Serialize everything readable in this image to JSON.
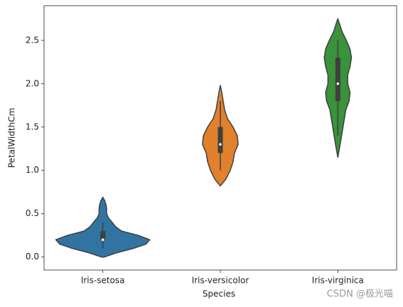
{
  "chart_data": {
    "type": "violin",
    "xlabel": "Species",
    "ylabel": "PetalWidthCm",
    "categories": [
      "Iris-setosa",
      "Iris-versicolor",
      "Iris-virginica"
    ],
    "ylim": [
      -0.15,
      2.9
    ],
    "yticks": [
      {
        "value": 0,
        "label": "0.0"
      },
      0.5,
      {
        "value": 1,
        "label": "1.0"
      },
      1.5,
      {
        "value": 2,
        "label": "2.0"
      },
      2.5
    ],
    "violins": [
      {
        "color": "#3274a1",
        "profile_y": [
          0.0,
          0.05,
          0.1,
          0.15,
          0.2,
          0.25,
          0.3,
          0.35,
          0.4,
          0.45,
          0.5,
          0.55,
          0.6,
          0.65,
          0.69
        ],
        "profile_width": [
          0.03,
          0.3,
          0.65,
          0.92,
          1.0,
          0.75,
          0.4,
          0.27,
          0.2,
          0.12,
          0.08,
          0.08,
          0.07,
          0.04,
          0
        ],
        "q1": 0.2,
        "median": 0.2,
        "q3": 0.3,
        "whisker_low": 0.1,
        "whisker_high": 0.4
      },
      {
        "color": "#e1812c",
        "profile_y": [
          0.82,
          0.9,
          1.0,
          1.1,
          1.2,
          1.3,
          1.4,
          1.5,
          1.6,
          1.7,
          1.8,
          1.9,
          1.98
        ],
        "profile_width": [
          0,
          0.12,
          0.21,
          0.27,
          0.3,
          0.38,
          0.36,
          0.27,
          0.15,
          0.09,
          0.06,
          0.03,
          0
        ],
        "q1": 1.2,
        "median": 1.3,
        "q3": 1.5,
        "whisker_low": 1.0,
        "whisker_high": 1.8
      },
      {
        "color": "#3a923a",
        "profile_y": [
          1.15,
          1.3,
          1.5,
          1.7,
          1.8,
          1.9,
          2.0,
          2.1,
          2.2,
          2.3,
          2.4,
          2.5,
          2.6,
          2.7,
          2.75
        ],
        "profile_width": [
          0,
          0.05,
          0.11,
          0.17,
          0.24,
          0.26,
          0.21,
          0.21,
          0.26,
          0.29,
          0.26,
          0.18,
          0.09,
          0.03,
          0
        ],
        "q1": 1.8,
        "median": 2.0,
        "q3": 2.3,
        "whisker_low": 1.4,
        "whisker_high": 2.5
      }
    ],
    "watermark": "CSDN @极光喵"
  }
}
